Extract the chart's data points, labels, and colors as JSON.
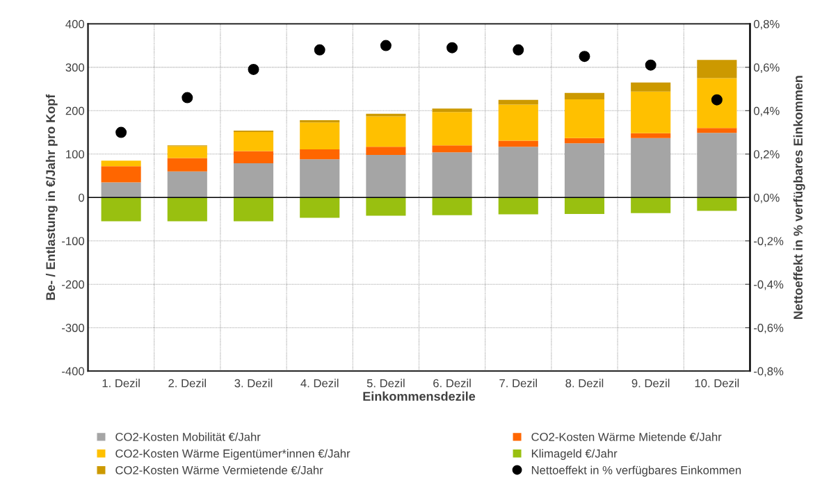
{
  "chart_data": {
    "type": "bar",
    "stacked": true,
    "xlabel": "Einkommensdezile",
    "ylabel": "Be- / Entlastung in €/Jahr pro Kopf",
    "y2label": "Nettoeffekt in % verfügbares Einkommen",
    "categories": [
      "1. Dezil",
      "2. Dezil",
      "3. Dezil",
      "4. Dezil",
      "5. Dezil",
      "6. Dezil",
      "7. Dezil",
      "8. Dezil",
      "9. Dezil",
      "10. Dezil"
    ],
    "series": [
      {
        "name": "CO2-Kosten Mobilität €/Jahr",
        "color": "#a5a5a5",
        "values": [
          35,
          60,
          79,
          88,
          98,
          104,
          117,
          125,
          137,
          149
        ]
      },
      {
        "name": "CO2-Kosten Wärme Mietende €/Jahr",
        "color": "#ff6600",
        "values": [
          37,
          31,
          28,
          23,
          19,
          16,
          14,
          12,
          11,
          11
        ]
      },
      {
        "name": "CO2-Kosten Wärme Eigentümer*innen €/Jahr",
        "color": "#ffc000",
        "values": [
          13,
          27,
          44,
          62,
          70,
          77,
          83,
          89,
          96,
          115
        ]
      },
      {
        "name": "Klimageld €/Jahr",
        "color": "#99c010",
        "values": [
          -55,
          -55,
          -55,
          -47,
          -42,
          -41,
          -39,
          -38,
          -36,
          -31
        ]
      },
      {
        "name": "CO2-Kosten Wärme Vermietende €/Jahr",
        "color": "#cc9900",
        "values": [
          null,
          2,
          3,
          5,
          6,
          8,
          11,
          15,
          21,
          42
        ]
      },
      {
        "name": "Nettoeffekt in % verfügbares Einkommen",
        "type": "scatter",
        "axis": "y2",
        "marker": "circle",
        "color": "#000000",
        "values": [
          0.3,
          0.46,
          0.59,
          0.68,
          0.7,
          0.69,
          0.68,
          0.65,
          0.61,
          0.45
        ]
      }
    ],
    "ylim": [
      -400,
      400
    ],
    "yticks": [
      -400,
      -300,
      -200,
      -100,
      0,
      100,
      200,
      300,
      400
    ],
    "y2lim": [
      -0.8,
      0.8
    ],
    "y2ticks": [
      {
        "value": -0.8,
        "label": "-0,8%"
      },
      {
        "value": -0.6,
        "label": "-0,6%"
      },
      {
        "value": -0.4,
        "label": "-0,4%"
      },
      {
        "value": -0.2,
        "label": "-0,2%"
      },
      {
        "value": 0,
        "label": "0,0%"
      },
      {
        "value": 0.2,
        "label": "0,2%"
      },
      {
        "value": 0.4,
        "label": "0,4%"
      },
      {
        "value": 0.6,
        "label": "0,6%"
      },
      {
        "value": 0.8,
        "label": "0,8%"
      }
    ],
    "grid": true,
    "legend": "bottom"
  }
}
